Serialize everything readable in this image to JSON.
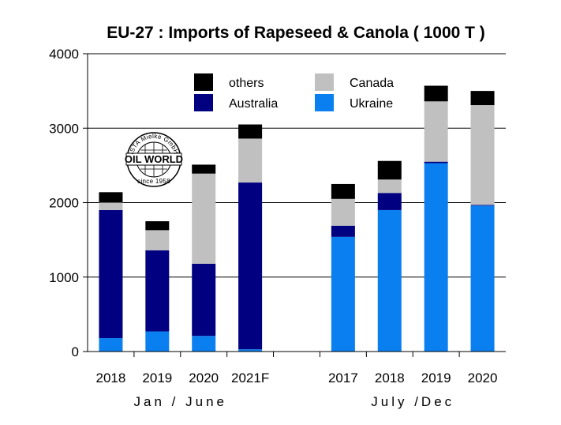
{
  "chart_data": {
    "type": "bar",
    "stacked": true,
    "title": "EU-27 : Imports of Rapeseed & Canola ( 1000 T )",
    "xlabel": "",
    "ylabel": "",
    "ylim": [
      0,
      4000
    ],
    "yticks": [
      "0",
      "1000",
      "2000",
      "3000",
      "4000"
    ],
    "grid": true,
    "categories": [
      "2018",
      "2019",
      "2020",
      "2021F",
      "2017",
      "2018",
      "2019",
      "2020"
    ],
    "groups": [
      {
        "label": "Jan / June",
        "categories": [
          "2018",
          "2019",
          "2020",
          "2021F"
        ]
      },
      {
        "label": "July /Dec",
        "categories": [
          "2017",
          "2018",
          "2019",
          "2020"
        ]
      }
    ],
    "series": [
      {
        "name": "Ukraine",
        "color": "#0a7ff0",
        "values": [
          180,
          270,
          210,
          30,
          1540,
          1900,
          2530,
          1960
        ]
      },
      {
        "name": "Australia",
        "color": "#000080",
        "values": [
          1720,
          1090,
          970,
          2240,
          150,
          230,
          20,
          10
        ]
      },
      {
        "name": "Canada",
        "color": "#c0c0c0",
        "values": [
          100,
          270,
          1210,
          590,
          360,
          180,
          810,
          1340
        ]
      },
      {
        "name": "others",
        "color": "#000000",
        "values": [
          140,
          120,
          120,
          190,
          200,
          250,
          210,
          190
        ]
      }
    ],
    "legend": {
      "placement": "top",
      "order": [
        "others",
        "Canada",
        "Australia",
        "Ukraine"
      ]
    }
  },
  "logo": {
    "top_text": "ISTA Mielke GmbH",
    "main_text": "OIL WORLD",
    "bottom_text": "since 1958"
  }
}
